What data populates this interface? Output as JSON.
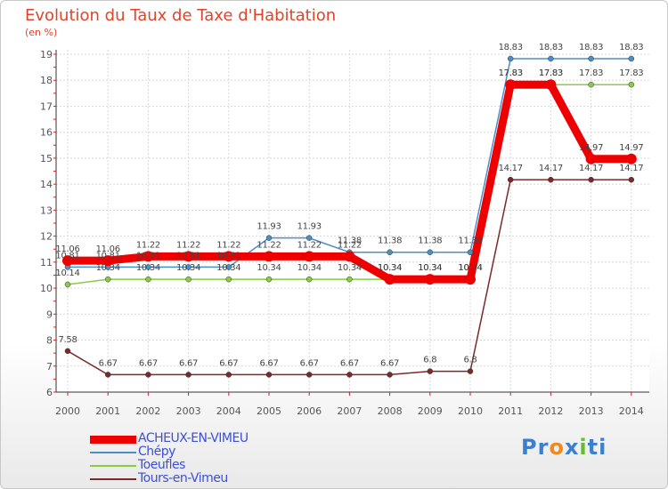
{
  "chart_data": {
    "type": "line",
    "title": "Evolution du Taux de Taxe d'Habitation",
    "subtitle": "(en %)",
    "ylim": [
      6,
      19
    ],
    "yticks": [
      6,
      7,
      8,
      9,
      10,
      11,
      12,
      13,
      14,
      15,
      16,
      17,
      18,
      19
    ],
    "categories": [
      "2000",
      "2001",
      "2002",
      "2003",
      "2004",
      "2005",
      "2006",
      "2007",
      "2008",
      "2009",
      "2010",
      "2011",
      "2012",
      "2013",
      "2014"
    ],
    "series": [
      {
        "name": "ACHEUX-EN-VIMEU",
        "color": "#ee0000",
        "values": [
          11.06,
          11.06,
          11.22,
          11.22,
          11.22,
          11.22,
          11.22,
          11.22,
          10.34,
          10.34,
          10.34,
          17.83,
          17.83,
          14.97,
          14.97
        ],
        "labels": [
          "11.06",
          "11.06",
          "11.22",
          "11.22",
          "11.22",
          "11.22",
          "11.22",
          "11.22",
          "10.34",
          "10.34",
          "10.34",
          "17.83",
          "17.83",
          "14.97",
          "14.97"
        ]
      },
      {
        "name": "Chépy",
        "color": "#4a90c8",
        "values": [
          10.81,
          10.81,
          10.81,
          10.81,
          10.81,
          11.93,
          11.93,
          11.38,
          11.38,
          11.38,
          11.38,
          18.83,
          18.83,
          18.83,
          18.83
        ],
        "labels": [
          "10.81",
          "10.81",
          "10.81",
          "10.81",
          "10.81",
          "11.93",
          "11.93",
          "11.38",
          "11.38",
          "11.38",
          "11.38",
          "18.83",
          "18.83",
          "18.83",
          "18.83"
        ]
      },
      {
        "name": "Toeufles",
        "color": "#88cc44",
        "values": [
          10.14,
          10.34,
          10.34,
          10.34,
          10.34,
          10.34,
          10.34,
          10.34,
          10.34,
          10.34,
          10.34,
          17.83,
          17.83,
          17.83,
          17.83
        ],
        "labels": [
          "10.14",
          "10.34",
          "10.34",
          "10.34",
          "10.34",
          "10.34",
          "10.34",
          "10.34",
          "10.34",
          "10.34",
          "10.34",
          "17.83",
          "17.83",
          "17.83",
          "17.83"
        ]
      },
      {
        "name": "Tours-en-Vimeu",
        "color": "#7a2a2a",
        "values": [
          7.58,
          6.67,
          6.67,
          6.67,
          6.67,
          6.67,
          6.67,
          6.67,
          6.67,
          6.8,
          6.8,
          14.17,
          14.17,
          14.17,
          14.17
        ],
        "labels": [
          "7.58",
          "6.67",
          "6.67",
          "6.67",
          "6.67",
          "6.67",
          "6.67",
          "6.67",
          "6.67",
          "6.8",
          "6.8",
          "14.17",
          "14.17",
          "14.17",
          "14.17"
        ]
      }
    ],
    "grid": true,
    "legend": "bottom-left"
  },
  "logo": {
    "parts": [
      "Pr",
      "o",
      "x",
      "i",
      "ti"
    ],
    "colors": [
      "#3a7fd0",
      "#f08a20",
      "#3a7fd0",
      "#66bb33",
      "#3a7fd0"
    ]
  }
}
